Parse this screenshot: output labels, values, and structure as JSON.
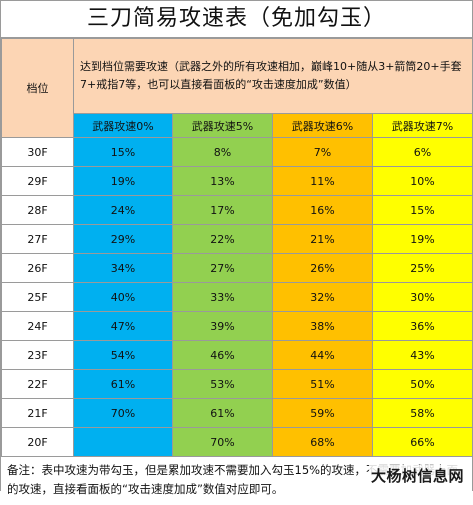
{
  "title": "三刀简易攻速表（免加勾玉）",
  "header": {
    "gear_label": "档位",
    "description": "达到档位需要攻速（武器之外的所有攻速相加，巅峰10+随从3+箭筒20+手套7+戒指7等，也可以直接看面板的“攻击速度加成”数值）"
  },
  "columns": [
    "武器攻速0%",
    "武器攻速5%",
    "武器攻速6%",
    "武器攻速7%"
  ],
  "rows": [
    {
      "gear": "30F",
      "values": [
        "15%",
        "8%",
        "7%",
        "6%"
      ]
    },
    {
      "gear": "29F",
      "values": [
        "19%",
        "13%",
        "11%",
        "10%"
      ]
    },
    {
      "gear": "28F",
      "values": [
        "24%",
        "17%",
        "16%",
        "15%"
      ]
    },
    {
      "gear": "27F",
      "values": [
        "29%",
        "22%",
        "21%",
        "19%"
      ]
    },
    {
      "gear": "26F",
      "values": [
        "34%",
        "27%",
        "26%",
        "25%"
      ]
    },
    {
      "gear": "25F",
      "values": [
        "40%",
        "33%",
        "32%",
        "30%"
      ]
    },
    {
      "gear": "24F",
      "values": [
        "47%",
        "39%",
        "38%",
        "36%"
      ]
    },
    {
      "gear": "23F",
      "values": [
        "54%",
        "46%",
        "44%",
        "43%"
      ]
    },
    {
      "gear": "22F",
      "values": [
        "61%",
        "53%",
        "51%",
        "50%"
      ]
    },
    {
      "gear": "21F",
      "values": [
        "70%",
        "61%",
        "59%",
        "58%"
      ]
    },
    {
      "gear": "20F",
      "values": [
        "",
        "70%",
        "68%",
        "66%"
      ]
    }
  ],
  "note": "备注：表中攻速为带勾玉，但是累加攻速不需要加入勾玉15%的攻速，不需要加武器上面的攻速，直接看面板的“攻击速度加成”数值对应即可。",
  "watermark": "大杨树信息网",
  "colors": {
    "header_bg": "#fcd5b4",
    "col_0": "#00b0f0",
    "col_5": "#92d050",
    "col_6": "#ffc000",
    "col_7": "#ffff00",
    "border": "#9a9a9a"
  }
}
